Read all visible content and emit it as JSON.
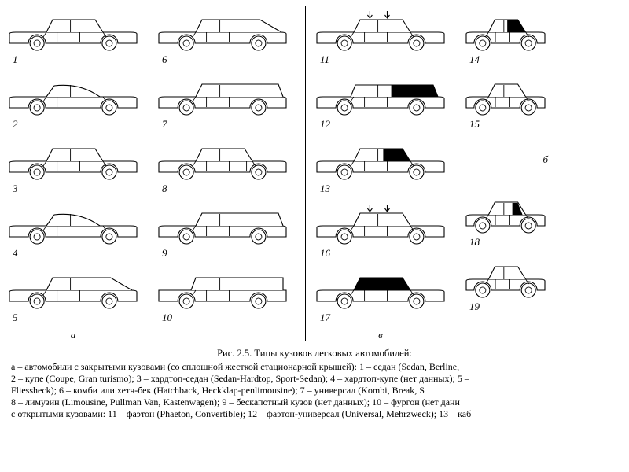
{
  "figure": {
    "title": "Рис. 2.5. Типы кузовов легковых автомобилей:",
    "section_labels": {
      "a": "а",
      "b": "б",
      "v": "в"
    },
    "columns": [
      {
        "cars": [
          {
            "idx": "1",
            "body": "sedan",
            "shade": "none"
          },
          {
            "idx": "2",
            "body": "coupe",
            "shade": "none"
          },
          {
            "idx": "3",
            "body": "sedan",
            "shade": "none"
          },
          {
            "idx": "4",
            "body": "coupe",
            "shade": "none"
          },
          {
            "idx": "5",
            "body": "hatch",
            "shade": "none"
          }
        ]
      },
      {
        "cars": [
          {
            "idx": "6",
            "body": "hatch",
            "shade": "none"
          },
          {
            "idx": "7",
            "body": "wagon",
            "shade": "none"
          },
          {
            "idx": "8",
            "body": "limo",
            "shade": "none"
          },
          {
            "idx": "9",
            "body": "wagon",
            "shade": "none"
          },
          {
            "idx": "10",
            "body": "van",
            "shade": "none"
          }
        ]
      },
      {
        "cars": [
          {
            "idx": "11",
            "body": "sedan",
            "shade": "none",
            "roofArrows": true
          },
          {
            "idx": "12",
            "body": "suv",
            "shade": "rear-qtr"
          },
          {
            "idx": "13",
            "body": "sedan",
            "shade": "roof-rear"
          },
          {
            "idx": "16",
            "body": "sedan",
            "shade": "none",
            "roofArrows": true
          },
          {
            "idx": "17",
            "body": "sedan",
            "shade": "roof-full"
          }
        ]
      },
      {
        "cars": [
          {
            "idx": "14",
            "body": "sedan",
            "shade": "roof-rear"
          },
          {
            "idx": "15",
            "body": "sedan",
            "shade": "none"
          },
          {
            "idx": "б",
            "body": "label",
            "shade": "none"
          },
          {
            "idx": "18",
            "body": "sedan",
            "shade": "rear-qtr"
          },
          {
            "idx": "19",
            "body": "sedan",
            "shade": "none"
          }
        ]
      }
    ],
    "style": {
      "stroke": "#000000",
      "stroke_width": 1.1,
      "shade_fill": "#000000",
      "car_w": 170,
      "car_h": 62,
      "car_w_narrow": 120
    }
  },
  "caption_lines": [
    "а – автомобили с закрытыми кузовами (со сплошной жесткой стационарной крышей): 1 – седан (Sedan, Berline,",
    "2 – купе (Coupe, Gran turismo); 3 – хардтоп-седан (Sedan-Hardtop, Sport-Sedan); 4 – хардтоп-купе (нет данных); 5 –",
    "Fliessheck); 6 – комби или хетч-бек (Hatchback, Heckklap-penlimousine); 7 – универсал (Kombi, Break, S",
    "8 – лимузин (Limousine, Pullman Van, Kastenwagen); 9 – бескапотный кузов (нет данных); 10 – фургон (нет данн",
    "с открытыми кузовами: 11 – фаэтон (Phaeton, Convertible); 12 – фаэтон-универсал (Universal, Mehrzweck); 13 – каб"
  ]
}
